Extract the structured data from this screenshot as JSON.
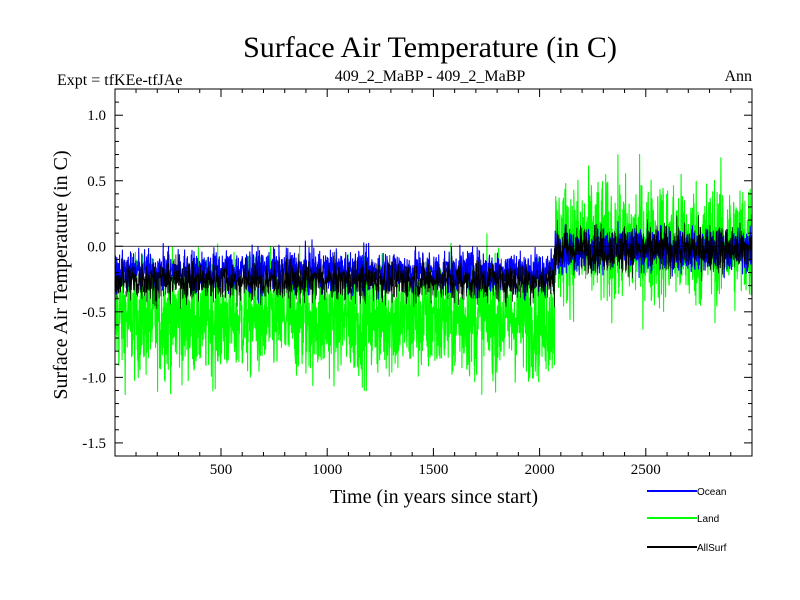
{
  "chart_data": {
    "type": "line",
    "title": "Surface Air Temperature (in C)",
    "subtitle_left": "Expt = tfKEe-tfJAe",
    "subtitle_center": "409_2_MaBP - 409_2_MaBP",
    "subtitle_right": "Ann",
    "xlabel": "Time (in years since start)",
    "ylabel": "Surface Air Temperature (in C)",
    "xlim": [
      1,
      3000
    ],
    "ylim": [
      -1.6,
      1.2
    ],
    "xticks": [
      500,
      1000,
      1500,
      2000,
      2500
    ],
    "xtick_labels": [
      "500",
      "1000",
      "1500",
      "2000",
      "2500"
    ],
    "yticks": [
      1.0,
      0.5,
      0.0,
      -0.5,
      -1.0,
      -1.5
    ],
    "ytick_labels": [
      "1.0",
      "0.5",
      "0.0",
      "-0.5",
      "-1.0",
      "-1.5"
    ],
    "zero_line": true,
    "legend_position": "bottom-right",
    "series": [
      {
        "name": "Land",
        "color": "#00ff00",
        "segments": [
          {
            "x_start": 1,
            "x_end": 2070,
            "mean": -0.55,
            "std": 0.22,
            "min": -1.35,
            "max": 0.42
          },
          {
            "x_start": 2070,
            "x_end": 3000,
            "mean": 0.02,
            "std": 0.24,
            "min": -0.76,
            "max": 1.06
          }
        ]
      },
      {
        "name": "Ocean",
        "color": "#0000ff",
        "segments": [
          {
            "x_start": 1,
            "x_end": 2070,
            "mean": -0.19,
            "std": 0.08,
            "min": -0.48,
            "max": 0.1
          },
          {
            "x_start": 2070,
            "x_end": 3000,
            "mean": -0.03,
            "std": 0.08,
            "min": -0.28,
            "max": 0.22
          }
        ]
      },
      {
        "name": "AllSurf",
        "color": "#000000",
        "segments": [
          {
            "x_start": 1,
            "x_end": 2070,
            "mean": -0.26,
            "std": 0.08,
            "min": -0.55,
            "max": 0.05
          },
          {
            "x_start": 2070,
            "x_end": 3000,
            "mean": -0.02,
            "std": 0.09,
            "min": -0.3,
            "max": 0.25
          }
        ]
      }
    ],
    "legend": [
      {
        "name": "Ocean",
        "color": "#0000ff"
      },
      {
        "name": "Land",
        "color": "#00ff00"
      },
      {
        "name": "AllSurf",
        "color": "#000000"
      }
    ]
  }
}
